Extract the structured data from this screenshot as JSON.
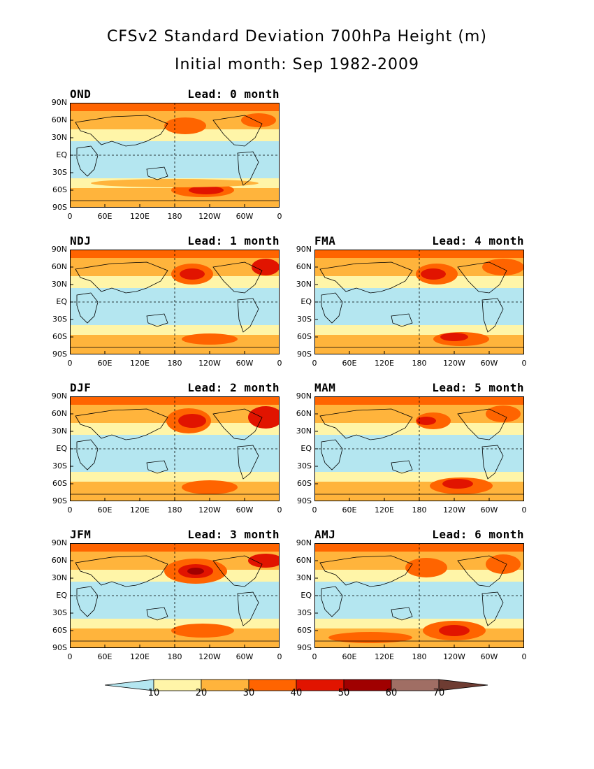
{
  "title": "CFSv2 Standard Deviation 700hPa Height (m)",
  "subtitle": "Initial month: Sep 1982-2009",
  "lat_ticks": [
    "90N",
    "60N",
    "30N",
    "EQ",
    "30S",
    "60S",
    "90S"
  ],
  "lon_ticks_pacific": [
    "0",
    "60E",
    "120E",
    "180",
    "120W",
    "60W",
    "0"
  ],
  "lon_ticks_alt": [
    "0",
    "60E",
    "120E",
    "180",
    "120W",
    "60W",
    "0"
  ],
  "colors": {
    "lt10": "#b4e6f0",
    "b10_20": "#fff5a8",
    "b20_30": "#ffb43c",
    "b30_40": "#ff6400",
    "b40_50": "#e11400",
    "b50_60": "#a00000",
    "b60_70": "#a06e64",
    "gt70": "#6e3c32"
  },
  "panels": [
    {
      "id": "ond",
      "season": "OND",
      "lead": "Lead: 0 month"
    },
    {
      "id": "ndj",
      "season": "NDJ",
      "lead": "Lead: 1 month"
    },
    {
      "id": "fma",
      "season": "FMA",
      "lead": "Lead: 4 month"
    },
    {
      "id": "djf",
      "season": "DJF",
      "lead": "Lead: 2 month"
    },
    {
      "id": "mam",
      "season": "MAM",
      "lead": "Lead: 5 month"
    },
    {
      "id": "jfm",
      "season": "JFM",
      "lead": "Lead: 3 month"
    },
    {
      "id": "amj",
      "season": "AMJ",
      "lead": "Lead: 6 month"
    }
  ],
  "colorbar": {
    "labels": [
      "10",
      "20",
      "30",
      "40",
      "50",
      "60",
      "70"
    ]
  }
}
